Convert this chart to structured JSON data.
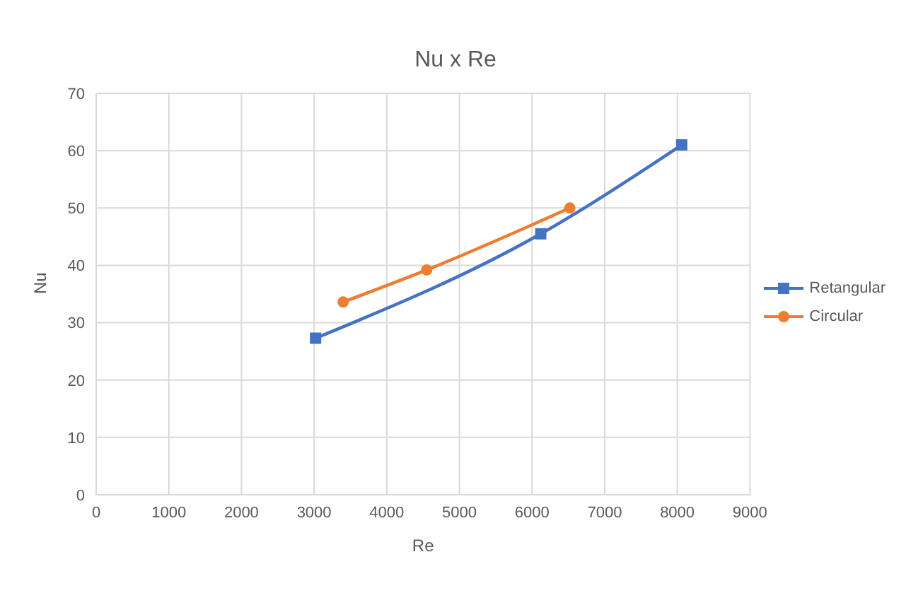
{
  "chart_data": {
    "type": "line",
    "title": "Nu x Re",
    "xlabel": "Re",
    "ylabel": "Nu",
    "series": [
      {
        "name": "Retangular",
        "color": "#4472c4",
        "x": [
          3020,
          6120,
          8060
        ],
        "values": [
          27.3,
          45.5,
          61
        ],
        "marker": "square"
      },
      {
        "name": "Circular",
        "color": "#ed7d31",
        "x": [
          3400,
          4550,
          6520
        ],
        "values": [
          33.6,
          39.2,
          50
        ],
        "marker": "circle"
      }
    ],
    "xlim": [
      0,
      9000
    ],
    "xticks": [
      0,
      1000,
      2000,
      3000,
      4000,
      5000,
      6000,
      7000,
      8000,
      9000
    ],
    "ylim": [
      0,
      70
    ],
    "yticks": [
      0,
      10,
      20,
      30,
      40,
      50,
      60,
      70
    ],
    "grid": true,
    "legend": "right"
  }
}
